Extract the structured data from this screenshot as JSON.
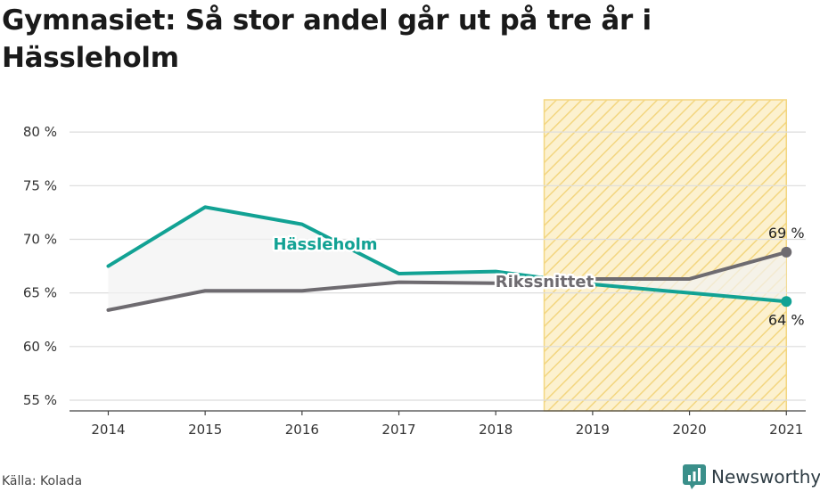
{
  "title": "Gymnasiet: Så stor andel går ut på tre år i Hässleholm",
  "source": "Källa: Kolada",
  "brand": "Newsworthy",
  "colors": {
    "local": "#12a294",
    "national": "#6e6b70",
    "highlight_fill": "#fcf1cf",
    "highlight_hatch": "#f3d680",
    "grid": "#dcdcdc",
    "band": "#f2f2f2"
  },
  "chart_data": {
    "type": "line",
    "x": [
      2014,
      2015,
      2016,
      2017,
      2018,
      2019,
      2020,
      2021
    ],
    "xlabels": [
      "2014",
      "2015",
      "2016",
      "2017",
      "2018",
      "2019",
      "2020",
      "2021"
    ],
    "yticks": [
      55,
      60,
      65,
      70,
      75,
      80
    ],
    "ytick_labels": [
      "55 %",
      "60 %",
      "65 %",
      "70 %",
      "75 %",
      "80 %"
    ],
    "ylim": [
      54,
      84
    ],
    "xlim": [
      2013.6,
      2021.2
    ],
    "highlight_range": [
      2018.5,
      2021
    ],
    "series": [
      {
        "name": "Hässleholm",
        "values": [
          67.5,
          73,
          71.4,
          66.8,
          67.0,
          65.8,
          65.0,
          64.2
        ],
        "end_label": "64 %"
      },
      {
        "name": "Rikssnittet",
        "values": [
          63.4,
          65.2,
          65.2,
          66.0,
          65.9,
          66.3,
          66.3,
          68.8
        ],
        "end_label": "69 %"
      }
    ],
    "grid": true
  }
}
